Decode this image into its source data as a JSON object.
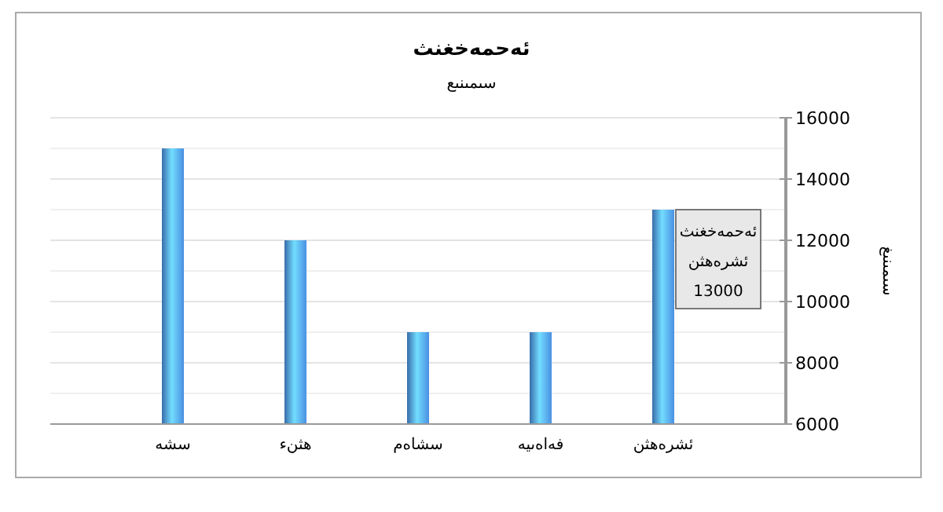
{
  "chart_data": {
    "type": "bar",
    "title": "ئەحمەخغنث",
    "subtitle": "سىمىنىع",
    "ylabel": "سىمىنىغ",
    "categories": [
      "سشە",
      "ھثنء",
      "سشاەم",
      "فەاەىيە",
      "ئشرەھثن"
    ],
    "values": [
      15000,
      12000,
      9000,
      9000,
      13000
    ],
    "color": "#4a90e2",
    "ylim": [
      6000,
      16000
    ],
    "yticks": [
      6000,
      8000,
      10000,
      12000,
      14000,
      16000
    ],
    "grid": true,
    "annotations": [
      {
        "text": "ئەحمەخغنث\nئشرەھثن\n13000",
        "x": "ئشرەھثن",
        "y": 13000
      }
    ]
  }
}
